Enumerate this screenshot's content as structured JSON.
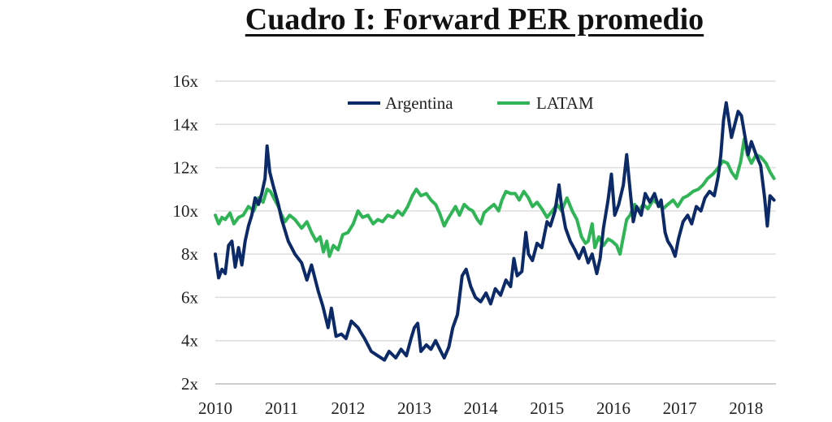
{
  "chart_data": {
    "type": "line",
    "title": "Cuadro I: Forward PER promedio",
    "xlabel": "",
    "ylabel": "",
    "xlim": [
      2010,
      2018.45
    ],
    "ylim": [
      2,
      16
    ],
    "x_ticks": [
      "2010",
      "2011",
      "2012",
      "2013",
      "2014",
      "2015",
      "2016",
      "2017",
      "2018"
    ],
    "y_ticks": [
      "2x",
      "4x",
      "6x",
      "8x",
      "10x",
      "12x",
      "14x",
      "16x"
    ],
    "grid": true,
    "legend": "top-center",
    "series": [
      {
        "name": "Argentina",
        "color": "#0d2a68",
        "points": [
          [
            2010.0,
            8.0
          ],
          [
            2010.05,
            6.9
          ],
          [
            2010.1,
            7.3
          ],
          [
            2010.15,
            7.1
          ],
          [
            2010.2,
            8.4
          ],
          [
            2010.25,
            8.6
          ],
          [
            2010.3,
            7.4
          ],
          [
            2010.35,
            8.3
          ],
          [
            2010.4,
            7.5
          ],
          [
            2010.45,
            8.6
          ],
          [
            2010.5,
            9.3
          ],
          [
            2010.55,
            9.8
          ],
          [
            2010.6,
            10.6
          ],
          [
            2010.65,
            10.3
          ],
          [
            2010.7,
            10.8
          ],
          [
            2010.75,
            11.5
          ],
          [
            2010.78,
            13.0
          ],
          [
            2010.82,
            11.8
          ],
          [
            2010.87,
            11.2
          ],
          [
            2010.95,
            10.3
          ],
          [
            2011.0,
            9.6
          ],
          [
            2011.1,
            8.6
          ],
          [
            2011.2,
            8.0
          ],
          [
            2011.3,
            7.6
          ],
          [
            2011.38,
            6.8
          ],
          [
            2011.45,
            7.5
          ],
          [
            2011.55,
            6.3
          ],
          [
            2011.62,
            5.6
          ],
          [
            2011.7,
            4.6
          ],
          [
            2011.75,
            5.5
          ],
          [
            2011.82,
            4.2
          ],
          [
            2011.9,
            4.3
          ],
          [
            2011.97,
            4.1
          ],
          [
            2012.05,
            4.9
          ],
          [
            2012.15,
            4.6
          ],
          [
            2012.25,
            4.1
          ],
          [
            2012.35,
            3.5
          ],
          [
            2012.45,
            3.3
          ],
          [
            2012.55,
            3.1
          ],
          [
            2012.62,
            3.5
          ],
          [
            2012.72,
            3.2
          ],
          [
            2012.8,
            3.6
          ],
          [
            2012.88,
            3.3
          ],
          [
            2012.95,
            4.1
          ],
          [
            2013.0,
            4.6
          ],
          [
            2013.05,
            4.8
          ],
          [
            2013.1,
            3.5
          ],
          [
            2013.18,
            3.8
          ],
          [
            2013.25,
            3.6
          ],
          [
            2013.32,
            4.0
          ],
          [
            2013.4,
            3.5
          ],
          [
            2013.45,
            3.2
          ],
          [
            2013.52,
            3.7
          ],
          [
            2013.58,
            4.6
          ],
          [
            2013.65,
            5.2
          ],
          [
            2013.72,
            7.0
          ],
          [
            2013.78,
            7.3
          ],
          [
            2013.85,
            6.5
          ],
          [
            2013.92,
            6.0
          ],
          [
            2014.0,
            5.8
          ],
          [
            2014.08,
            6.2
          ],
          [
            2014.15,
            5.7
          ],
          [
            2014.22,
            6.4
          ],
          [
            2014.3,
            6.1
          ],
          [
            2014.38,
            6.8
          ],
          [
            2014.45,
            6.5
          ],
          [
            2014.5,
            7.8
          ],
          [
            2014.55,
            7.0
          ],
          [
            2014.62,
            7.2
          ],
          [
            2014.68,
            9.0
          ],
          [
            2014.72,
            8.0
          ],
          [
            2014.78,
            7.7
          ],
          [
            2014.85,
            8.5
          ],
          [
            2014.92,
            8.3
          ],
          [
            2015.0,
            9.5
          ],
          [
            2015.05,
            9.3
          ],
          [
            2015.12,
            10.0
          ],
          [
            2015.18,
            11.2
          ],
          [
            2015.22,
            10.2
          ],
          [
            2015.28,
            9.2
          ],
          [
            2015.35,
            8.6
          ],
          [
            2015.42,
            8.2
          ],
          [
            2015.48,
            7.8
          ],
          [
            2015.55,
            8.3
          ],
          [
            2015.62,
            7.6
          ],
          [
            2015.68,
            8.0
          ],
          [
            2015.75,
            7.1
          ],
          [
            2015.8,
            7.8
          ],
          [
            2015.85,
            9.2
          ],
          [
            2015.92,
            10.5
          ],
          [
            2015.97,
            11.7
          ],
          [
            2016.02,
            9.8
          ],
          [
            2016.08,
            10.3
          ],
          [
            2016.15,
            11.2
          ],
          [
            2016.2,
            12.6
          ],
          [
            2016.25,
            11.0
          ],
          [
            2016.3,
            9.5
          ],
          [
            2016.35,
            10.2
          ],
          [
            2016.42,
            9.8
          ],
          [
            2016.48,
            10.8
          ],
          [
            2016.55,
            10.4
          ],
          [
            2016.62,
            10.8
          ],
          [
            2016.68,
            10.2
          ],
          [
            2016.72,
            10.5
          ],
          [
            2016.78,
            9.0
          ],
          [
            2016.82,
            8.6
          ],
          [
            2016.88,
            8.3
          ],
          [
            2016.93,
            7.9
          ],
          [
            2016.98,
            8.7
          ],
          [
            2017.05,
            9.5
          ],
          [
            2017.12,
            9.8
          ],
          [
            2017.18,
            9.4
          ],
          [
            2017.25,
            10.2
          ],
          [
            2017.32,
            10.0
          ],
          [
            2017.38,
            10.6
          ],
          [
            2017.45,
            10.9
          ],
          [
            2017.52,
            10.7
          ],
          [
            2017.58,
            11.6
          ],
          [
            2017.62,
            12.6
          ],
          [
            2017.66,
            14.2
          ],
          [
            2017.7,
            15.0
          ],
          [
            2017.74,
            14.2
          ],
          [
            2017.78,
            13.4
          ],
          [
            2017.83,
            14.0
          ],
          [
            2017.88,
            14.6
          ],
          [
            2017.93,
            14.4
          ],
          [
            2017.98,
            13.5
          ],
          [
            2018.03,
            12.6
          ],
          [
            2018.08,
            13.2
          ],
          [
            2018.15,
            12.6
          ],
          [
            2018.22,
            12.1
          ],
          [
            2018.28,
            10.6
          ],
          [
            2018.32,
            9.3
          ],
          [
            2018.36,
            10.7
          ],
          [
            2018.42,
            10.5
          ]
        ]
      },
      {
        "name": "LATAM",
        "color": "#2fb456",
        "points": [
          [
            2010.0,
            9.8
          ],
          [
            2010.05,
            9.4
          ],
          [
            2010.1,
            9.7
          ],
          [
            2010.15,
            9.6
          ],
          [
            2010.22,
            9.9
          ],
          [
            2010.28,
            9.4
          ],
          [
            2010.35,
            9.7
          ],
          [
            2010.42,
            9.8
          ],
          [
            2010.5,
            10.2
          ],
          [
            2010.58,
            10.0
          ],
          [
            2010.65,
            10.6
          ],
          [
            2010.72,
            10.4
          ],
          [
            2010.78,
            11.0
          ],
          [
            2010.83,
            10.9
          ],
          [
            2010.88,
            10.6
          ],
          [
            2010.95,
            10.2
          ],
          [
            2011.0,
            9.8
          ],
          [
            2011.05,
            9.5
          ],
          [
            2011.12,
            9.8
          ],
          [
            2011.2,
            9.6
          ],
          [
            2011.3,
            9.2
          ],
          [
            2011.38,
            9.5
          ],
          [
            2011.45,
            9.0
          ],
          [
            2011.52,
            8.6
          ],
          [
            2011.58,
            8.8
          ],
          [
            2011.63,
            8.1
          ],
          [
            2011.68,
            8.6
          ],
          [
            2011.72,
            7.9
          ],
          [
            2011.78,
            8.4
          ],
          [
            2011.85,
            8.2
          ],
          [
            2011.92,
            8.9
          ],
          [
            2012.0,
            9.0
          ],
          [
            2012.08,
            9.4
          ],
          [
            2012.15,
            10.0
          ],
          [
            2012.22,
            9.7
          ],
          [
            2012.3,
            9.8
          ],
          [
            2012.38,
            9.4
          ],
          [
            2012.45,
            9.6
          ],
          [
            2012.52,
            9.5
          ],
          [
            2012.6,
            9.8
          ],
          [
            2012.68,
            9.7
          ],
          [
            2012.75,
            10.0
          ],
          [
            2012.82,
            9.8
          ],
          [
            2012.9,
            10.2
          ],
          [
            2012.97,
            10.7
          ],
          [
            2013.03,
            11.0
          ],
          [
            2013.1,
            10.7
          ],
          [
            2013.18,
            10.8
          ],
          [
            2013.25,
            10.5
          ],
          [
            2013.32,
            10.3
          ],
          [
            2013.38,
            9.9
          ],
          [
            2013.45,
            9.3
          ],
          [
            2013.5,
            9.6
          ],
          [
            2013.56,
            9.9
          ],
          [
            2013.62,
            10.2
          ],
          [
            2013.68,
            9.8
          ],
          [
            2013.75,
            10.3
          ],
          [
            2013.82,
            10.1
          ],
          [
            2013.88,
            10.0
          ],
          [
            2013.95,
            9.6
          ],
          [
            2014.0,
            9.4
          ],
          [
            2014.05,
            9.9
          ],
          [
            2014.12,
            10.1
          ],
          [
            2014.2,
            10.3
          ],
          [
            2014.27,
            10.0
          ],
          [
            2014.32,
            10.5
          ],
          [
            2014.38,
            10.9
          ],
          [
            2014.45,
            10.8
          ],
          [
            2014.52,
            10.8
          ],
          [
            2014.58,
            10.5
          ],
          [
            2014.65,
            10.9
          ],
          [
            2014.72,
            10.6
          ],
          [
            2014.78,
            10.2
          ],
          [
            2014.85,
            10.4
          ],
          [
            2014.92,
            10.1
          ],
          [
            2015.0,
            9.7
          ],
          [
            2015.08,
            10.0
          ],
          [
            2015.15,
            10.3
          ],
          [
            2015.22,
            10.0
          ],
          [
            2015.3,
            10.6
          ],
          [
            2015.38,
            10.0
          ],
          [
            2015.45,
            9.6
          ],
          [
            2015.52,
            8.8
          ],
          [
            2015.58,
            8.5
          ],
          [
            2015.62,
            8.6
          ],
          [
            2015.68,
            9.4
          ],
          [
            2015.72,
            8.3
          ],
          [
            2015.78,
            8.8
          ],
          [
            2015.85,
            8.4
          ],
          [
            2015.92,
            8.7
          ],
          [
            2015.98,
            8.6
          ],
          [
            2016.05,
            8.4
          ],
          [
            2016.1,
            8.0
          ],
          [
            2016.15,
            8.8
          ],
          [
            2016.2,
            9.6
          ],
          [
            2016.25,
            9.8
          ],
          [
            2016.32,
            10.3
          ],
          [
            2016.38,
            10.0
          ],
          [
            2016.45,
            10.3
          ],
          [
            2016.52,
            10.1
          ],
          [
            2016.6,
            10.5
          ],
          [
            2016.68,
            10.3
          ],
          [
            2016.75,
            10.1
          ],
          [
            2016.82,
            10.3
          ],
          [
            2016.9,
            10.5
          ],
          [
            2016.97,
            10.2
          ],
          [
            2017.05,
            10.6
          ],
          [
            2017.12,
            10.7
          ],
          [
            2017.2,
            10.9
          ],
          [
            2017.28,
            11.0
          ],
          [
            2017.35,
            11.2
          ],
          [
            2017.42,
            11.5
          ],
          [
            2017.5,
            11.7
          ],
          [
            2017.58,
            12.0
          ],
          [
            2017.65,
            12.3
          ],
          [
            2017.72,
            12.2
          ],
          [
            2017.78,
            11.8
          ],
          [
            2017.85,
            11.5
          ],
          [
            2017.92,
            12.3
          ],
          [
            2017.97,
            13.3
          ],
          [
            2018.02,
            12.6
          ],
          [
            2018.08,
            12.2
          ],
          [
            2018.15,
            12.6
          ],
          [
            2018.22,
            12.5
          ],
          [
            2018.3,
            12.2
          ],
          [
            2018.36,
            11.8
          ],
          [
            2018.42,
            11.5
          ]
        ]
      }
    ]
  }
}
